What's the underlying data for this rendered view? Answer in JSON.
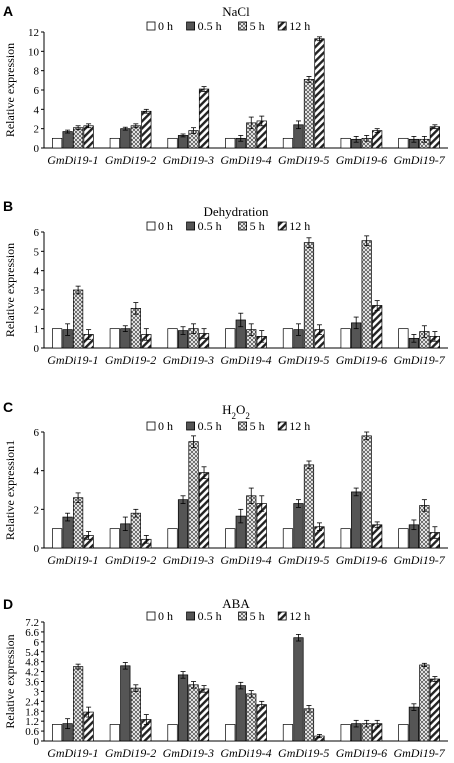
{
  "legend_labels": [
    "0 h",
    "0.5 h",
    "5 h",
    "12 h"
  ],
  "series_colors": {
    "0 h": "#ffffff",
    "0.5 h": "#555555",
    "5 h": "crosshatch",
    "12 h": "diagonal-stripes"
  },
  "chart_data": [
    {
      "panel": "A",
      "type": "bar",
      "title": "NaCl",
      "ylabel": "Relative expression",
      "xlabel": "",
      "ylim": [
        0,
        12
      ],
      "yticks": [
        0,
        2,
        4,
        6,
        8,
        10,
        12
      ],
      "legend_position": "top",
      "grid": false,
      "categories": [
        "GmDi19-1",
        "GmDi19-2",
        "GmDi19-3",
        "GmDi19-4",
        "GmDi19-5",
        "GmDi19-6",
        "GmDi19-7"
      ],
      "series": [
        {
          "name": "0 h",
          "values": [
            1,
            1,
            1,
            1,
            1,
            1,
            1
          ],
          "errors": [
            0,
            0,
            0,
            0,
            0,
            0,
            0
          ]
        },
        {
          "name": "0.5 h",
          "values": [
            1.7,
            2.0,
            1.3,
            1.0,
            2.4,
            0.9,
            0.9
          ],
          "errors": [
            0.15,
            0.15,
            0.15,
            0.3,
            0.4,
            0.3,
            0.3
          ]
        },
        {
          "name": "5 h",
          "values": [
            2.1,
            2.3,
            1.8,
            2.6,
            7.1,
            1.0,
            0.9
          ],
          "errors": [
            0.2,
            0.2,
            0.3,
            0.6,
            0.3,
            0.3,
            0.3
          ]
        },
        {
          "name": "12 h",
          "values": [
            2.3,
            3.8,
            6.1,
            2.8,
            11.3,
            1.8,
            2.2
          ],
          "errors": [
            0.2,
            0.2,
            0.25,
            0.5,
            0.2,
            0.2,
            0.2
          ]
        }
      ]
    },
    {
      "panel": "B",
      "type": "bar",
      "title": "Dehydration",
      "ylabel": "Relative expression",
      "xlabel": "",
      "ylim": [
        0,
        6
      ],
      "yticks": [
        0,
        1,
        2,
        3,
        4,
        5,
        6
      ],
      "legend_position": "top",
      "grid": false,
      "categories": [
        "GmDi19-1",
        "GmDi19-2",
        "GmDi19-3",
        "GmDi19-4",
        "GmDi19-5",
        "GmDi19-6",
        "GmDi19-7"
      ],
      "series": [
        {
          "name": "0 h",
          "values": [
            1,
            1,
            1,
            1,
            1,
            1,
            1
          ],
          "errors": [
            0,
            0,
            0,
            0,
            0,
            0,
            0
          ]
        },
        {
          "name": "0.5 h",
          "values": [
            0.95,
            1.0,
            0.9,
            1.45,
            0.95,
            1.3,
            0.5
          ],
          "errors": [
            0.3,
            0.15,
            0.2,
            0.35,
            0.3,
            0.3,
            0.2
          ]
        },
        {
          "name": "5 h",
          "values": [
            3.0,
            2.05,
            1.0,
            0.95,
            5.45,
            5.55,
            0.85
          ],
          "errors": [
            0.2,
            0.3,
            0.25,
            0.3,
            0.25,
            0.25,
            0.3
          ]
        },
        {
          "name": "12 h",
          "values": [
            0.7,
            0.7,
            0.75,
            0.6,
            0.95,
            2.2,
            0.6
          ],
          "errors": [
            0.25,
            0.3,
            0.25,
            0.3,
            0.25,
            0.25,
            0.25
          ]
        }
      ]
    },
    {
      "panel": "C",
      "type": "bar",
      "title": "H2O2",
      "ylabel": "Relative expression1",
      "xlabel": "",
      "ylim": [
        0,
        6
      ],
      "yticks": [
        0,
        2,
        4,
        6
      ],
      "legend_position": "top",
      "grid": false,
      "categories": [
        "GmDi19-1",
        "GmDi19-2",
        "GmDi19-3",
        "GmDi19-4",
        "GmDi19-5",
        "GmDi19-6",
        "GmDi19-7"
      ],
      "series": [
        {
          "name": "0 h",
          "values": [
            1,
            1,
            1,
            1,
            1,
            1,
            1
          ],
          "errors": [
            0,
            0,
            0,
            0,
            0,
            0,
            0
          ]
        },
        {
          "name": "0.5 h",
          "values": [
            1.6,
            1.25,
            2.5,
            1.65,
            2.3,
            2.9,
            1.2
          ],
          "errors": [
            0.2,
            0.35,
            0.2,
            0.35,
            0.2,
            0.2,
            0.25
          ]
        },
        {
          "name": "5 h",
          "values": [
            2.6,
            1.8,
            5.5,
            2.7,
            4.3,
            5.8,
            2.2
          ],
          "errors": [
            0.25,
            0.2,
            0.3,
            0.4,
            0.2,
            0.2,
            0.3
          ]
        },
        {
          "name": "12 h",
          "values": [
            0.65,
            0.45,
            3.9,
            2.3,
            1.1,
            1.2,
            0.8
          ],
          "errors": [
            0.2,
            0.2,
            0.3,
            0.4,
            0.2,
            0.15,
            0.3
          ]
        }
      ]
    },
    {
      "panel": "D",
      "type": "bar",
      "title": "ABA",
      "ylabel": "Relative expression",
      "xlabel": "",
      "ylim": [
        0,
        7
      ],
      "yticks": [
        0,
        0.6,
        1.2,
        1.8,
        2.4,
        3,
        3.6,
        4.2,
        4.8,
        5.4,
        6,
        6.6,
        7.2
      ],
      "ytick_labels": [
        "0",
        "0.6",
        "1.2",
        "1.8",
        "2.4",
        "3",
        "3.6",
        "4.2",
        "4.8",
        "5.4",
        "6",
        "6.6",
        "7.2"
      ],
      "legend_position": "top",
      "grid": false,
      "categories": [
        "GmDi19-1",
        "GmDi19-2",
        "GmDi19-3",
        "GmDi19-4",
        "GmDi19-5",
        "GmDi19-6",
        "GmDi19-7"
      ],
      "series": [
        {
          "name": "0 h",
          "values": [
            1,
            1,
            1,
            1,
            1,
            1,
            1
          ],
          "errors": [
            0,
            0,
            0,
            0,
            0,
            0,
            0
          ]
        },
        {
          "name": "0.5 h",
          "values": [
            1.05,
            4.55,
            4.0,
            3.35,
            6.25,
            1.05,
            2.05
          ],
          "errors": [
            0.3,
            0.2,
            0.2,
            0.2,
            0.2,
            0.2,
            0.2
          ]
        },
        {
          "name": "5 h",
          "values": [
            4.5,
            3.2,
            3.4,
            2.85,
            1.95,
            1.05,
            4.6
          ],
          "errors": [
            0.15,
            0.2,
            0.2,
            0.2,
            0.2,
            0.2,
            0.1
          ]
        },
        {
          "name": "12 h",
          "values": [
            1.75,
            1.3,
            3.15,
            2.2,
            0.3,
            1.05,
            3.75
          ],
          "errors": [
            0.3,
            0.3,
            0.2,
            0.2,
            0.1,
            0.2,
            0.15
          ]
        }
      ]
    }
  ]
}
